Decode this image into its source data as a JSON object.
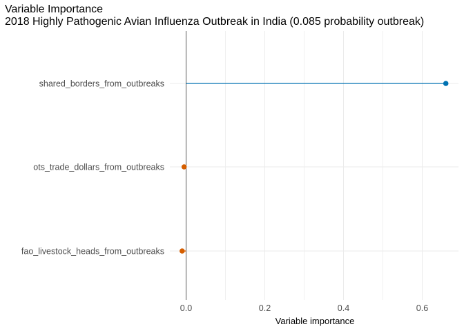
{
  "title": "Variable Importance",
  "subtitle": "2018 Highly Pathogenic Avian Influenza Outbreak in India (0.085 probability outbreak)",
  "chart_data": {
    "type": "lollipop",
    "orientation": "horizontal",
    "categories": [
      "shared_borders_from_outbreaks",
      "ots_trade_dollars_from_outbreaks",
      "fao_livestock_heads_from_outbreaks"
    ],
    "values": [
      0.66,
      -0.005,
      -0.01
    ],
    "point_colors": [
      "#0072B2",
      "#D55E00",
      "#D55E00"
    ],
    "xlabel": "Variable importance",
    "ylabel": "",
    "xlim": [
      -0.0,
      0.694
    ],
    "xticks": [
      0.0,
      0.2,
      0.4,
      0.6
    ],
    "xtick_labels": [
      "0.0",
      "0.2",
      "0.4",
      "0.6"
    ],
    "zero_line": true,
    "grid": true
  }
}
